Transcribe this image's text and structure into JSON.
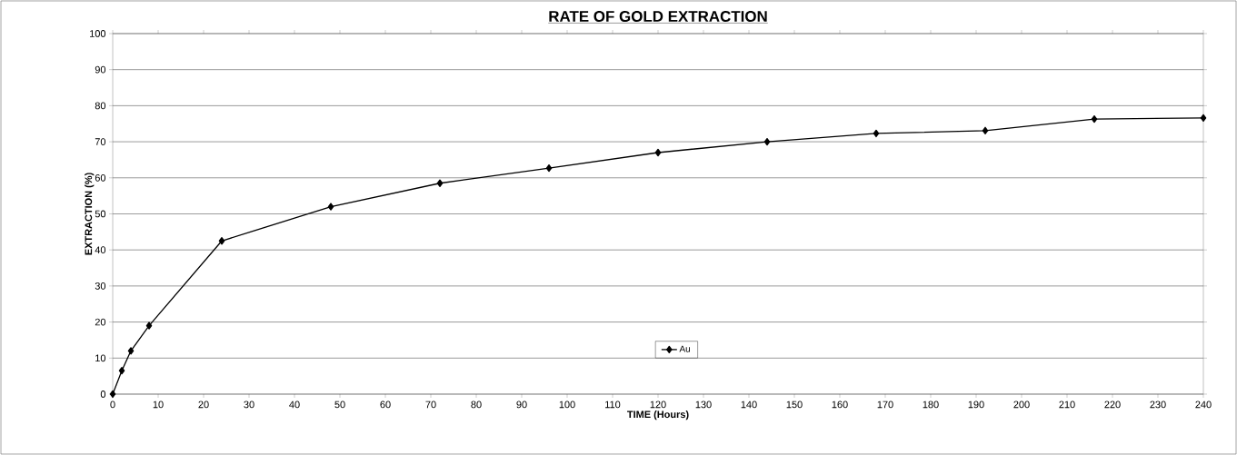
{
  "chart_data": {
    "type": "line",
    "title": "RATE OF GOLD EXTRACTION",
    "xlabel": "TIME (Hours)",
    "ylabel": "EXTRACTION (%)",
    "x": [
      0,
      2,
      4,
      8,
      24,
      48,
      72,
      96,
      120,
      144,
      168,
      192,
      216,
      240
    ],
    "series": [
      {
        "name": "Au",
        "color": "#000000",
        "values": [
          0,
          6.5,
          12,
          19,
          42.5,
          52,
          58.5,
          62.7,
          67,
          70,
          72.3,
          73.1,
          76.3,
          76.6
        ]
      }
    ],
    "xlim": [
      0,
      240
    ],
    "ylim": [
      0,
      100
    ],
    "xticks": [
      0,
      10,
      20,
      30,
      40,
      50,
      60,
      70,
      80,
      90,
      100,
      110,
      120,
      130,
      140,
      150,
      160,
      170,
      180,
      190,
      200,
      210,
      220,
      230,
      240
    ],
    "yticks": [
      0,
      10,
      20,
      30,
      40,
      50,
      60,
      70,
      80,
      90,
      100
    ],
    "grid": "y",
    "legend": "bottom",
    "marker": "diamond",
    "line_style": "solid"
  }
}
